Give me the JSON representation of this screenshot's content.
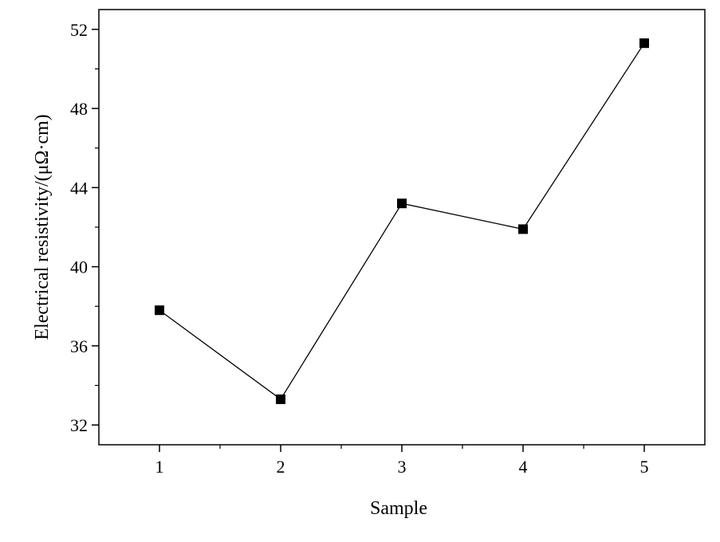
{
  "chart_data": {
    "type": "line",
    "xlabel": "Sample",
    "ylabel": "Electrical resistivity/(μΩ·cm)",
    "x": [
      1,
      2,
      3,
      4,
      5
    ],
    "y": [
      37.8,
      33.3,
      43.2,
      41.9,
      51.3
    ],
    "xlim": [
      0.5,
      5.5
    ],
    "ylim": [
      31,
      53
    ],
    "xticks": [
      "1",
      "2",
      "3",
      "4",
      "5"
    ],
    "yticks": [
      "32",
      "36",
      "40",
      "44",
      "48",
      "52"
    ],
    "marker": "square",
    "grid": false,
    "legend": "none",
    "colors": {
      "line": "#000000",
      "marker": "#000000",
      "axis": "#000000"
    }
  }
}
